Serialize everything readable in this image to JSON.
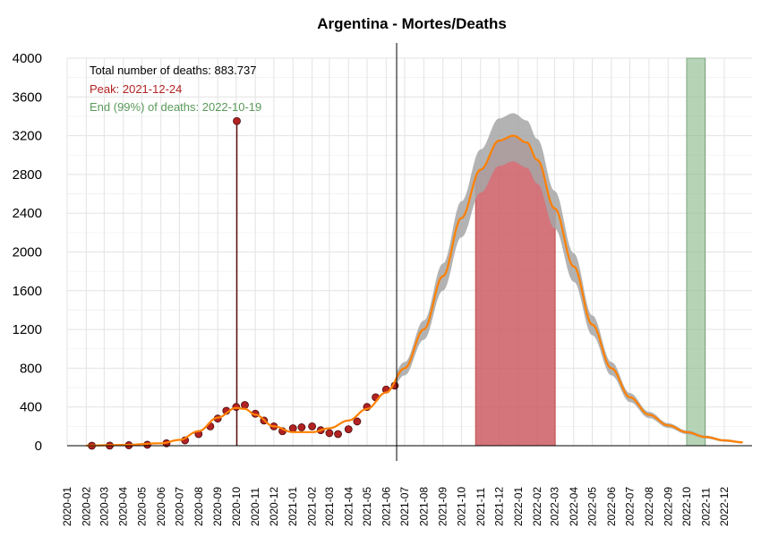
{
  "chart_data": {
    "type": "line",
    "title": "Argentina - Mortes/Deaths",
    "xlabel": "",
    "ylabel": "",
    "ylim": [
      0,
      4000
    ],
    "yticks": [
      0,
      400,
      800,
      1200,
      1600,
      2000,
      2400,
      2800,
      3200,
      3600,
      4000
    ],
    "x_months": [
      "2020-01",
      "2020-02",
      "2020-03",
      "2020-04",
      "2020-05",
      "2020-06",
      "2020-07",
      "2020-08",
      "2020-09",
      "2020-10",
      "2020-11",
      "2020-12",
      "2021-01",
      "2021-02",
      "2021-03",
      "2021-04",
      "2021-05",
      "2021-06",
      "2021-07",
      "2021-08",
      "2021-09",
      "2021-10",
      "2021-11",
      "2021-12",
      "2022-01",
      "2022-02",
      "2022-03",
      "2022-04",
      "2022-05",
      "2022-06",
      "2022-07",
      "2022-08",
      "2022-09",
      "2022-10",
      "2022-11",
      "2022-12"
    ],
    "x_range": [
      "2020-01-01",
      "2023-01-15"
    ],
    "grid": true,
    "annotations": {
      "total": "Total number of deaths: 883.737",
      "peak": "Peak: 2021-12-24",
      "end": "End (99%) of deaths: 2022-10-19"
    },
    "today_line": "2021-06-18",
    "peak_band": {
      "start": "2021-10-24",
      "end": "2022-03-02"
    },
    "end_band": {
      "start": "2022-10-01",
      "end": "2022-10-31"
    },
    "observed_daily_deaths": [
      {
        "x": "2020-02-10",
        "y": 0
      },
      {
        "x": "2020-03-10",
        "y": 1
      },
      {
        "x": "2020-04-10",
        "y": 5
      },
      {
        "x": "2020-05-10",
        "y": 10
      },
      {
        "x": "2020-06-10",
        "y": 25
      },
      {
        "x": "2020-07-10",
        "y": 55
      },
      {
        "x": "2020-08-01",
        "y": 120
      },
      {
        "x": "2020-08-20",
        "y": 200
      },
      {
        "x": "2020-09-01",
        "y": 280
      },
      {
        "x": "2020-09-15",
        "y": 360
      },
      {
        "x": "2020-10-01",
        "y": 400
      },
      {
        "x": "2020-10-02",
        "y": 3351
      },
      {
        "x": "2020-10-15",
        "y": 420
      },
      {
        "x": "2020-11-01",
        "y": 330
      },
      {
        "x": "2020-11-15",
        "y": 260
      },
      {
        "x": "2020-12-01",
        "y": 200
      },
      {
        "x": "2020-12-15",
        "y": 150
      },
      {
        "x": "2021-01-01",
        "y": 180
      },
      {
        "x": "2021-01-15",
        "y": 190
      },
      {
        "x": "2021-02-01",
        "y": 200
      },
      {
        "x": "2021-02-15",
        "y": 160
      },
      {
        "x": "2021-03-01",
        "y": 130
      },
      {
        "x": "2021-03-15",
        "y": 120
      },
      {
        "x": "2021-04-01",
        "y": 170
      },
      {
        "x": "2021-04-15",
        "y": 250
      },
      {
        "x": "2021-05-01",
        "y": 400
      },
      {
        "x": "2021-05-15",
        "y": 500
      },
      {
        "x": "2021-06-01",
        "y": 580
      },
      {
        "x": "2021-06-15",
        "y": 620
      }
    ],
    "fitted_curve": [
      {
        "x": "2020-02-01",
        "y": 2
      },
      {
        "x": "2020-04-01",
        "y": 8
      },
      {
        "x": "2020-06-01",
        "y": 25
      },
      {
        "x": "2020-07-01",
        "y": 60
      },
      {
        "x": "2020-08-01",
        "y": 150
      },
      {
        "x": "2020-09-01",
        "y": 290
      },
      {
        "x": "2020-10-01",
        "y": 390
      },
      {
        "x": "2020-10-15",
        "y": 380
      },
      {
        "x": "2020-11-01",
        "y": 320
      },
      {
        "x": "2020-12-01",
        "y": 200
      },
      {
        "x": "2021-01-01",
        "y": 140
      },
      {
        "x": "2021-02-01",
        "y": 140
      },
      {
        "x": "2021-03-01",
        "y": 180
      },
      {
        "x": "2021-04-01",
        "y": 260
      },
      {
        "x": "2021-05-01",
        "y": 380
      },
      {
        "x": "2021-06-01",
        "y": 550
      },
      {
        "x": "2021-07-01",
        "y": 800
      },
      {
        "x": "2021-08-01",
        "y": 1200
      },
      {
        "x": "2021-09-01",
        "y": 1750
      },
      {
        "x": "2021-10-01",
        "y": 2350
      },
      {
        "x": "2021-11-01",
        "y": 2850
      },
      {
        "x": "2021-12-01",
        "y": 3150
      },
      {
        "x": "2021-12-24",
        "y": 3200
      },
      {
        "x": "2022-01-15",
        "y": 3130
      },
      {
        "x": "2022-02-01",
        "y": 2950
      },
      {
        "x": "2022-03-01",
        "y": 2450
      },
      {
        "x": "2022-04-01",
        "y": 1850
      },
      {
        "x": "2022-05-01",
        "y": 1250
      },
      {
        "x": "2022-06-01",
        "y": 800
      },
      {
        "x": "2022-07-01",
        "y": 500
      },
      {
        "x": "2022-08-01",
        "y": 320
      },
      {
        "x": "2022-09-01",
        "y": 210
      },
      {
        "x": "2022-10-01",
        "y": 140
      },
      {
        "x": "2022-11-01",
        "y": 90
      },
      {
        "x": "2022-12-01",
        "y": 55
      },
      {
        "x": "2022-12-31",
        "y": 35
      }
    ],
    "colors": {
      "points": "#b22222",
      "curve": "#ff8000",
      "band": "#a6a6a6",
      "peak": "#cd5c64",
      "end": "#8fbc8f",
      "total_text": "#000000",
      "peak_text": "#b22222",
      "end_text": "#5a9a5a"
    }
  }
}
